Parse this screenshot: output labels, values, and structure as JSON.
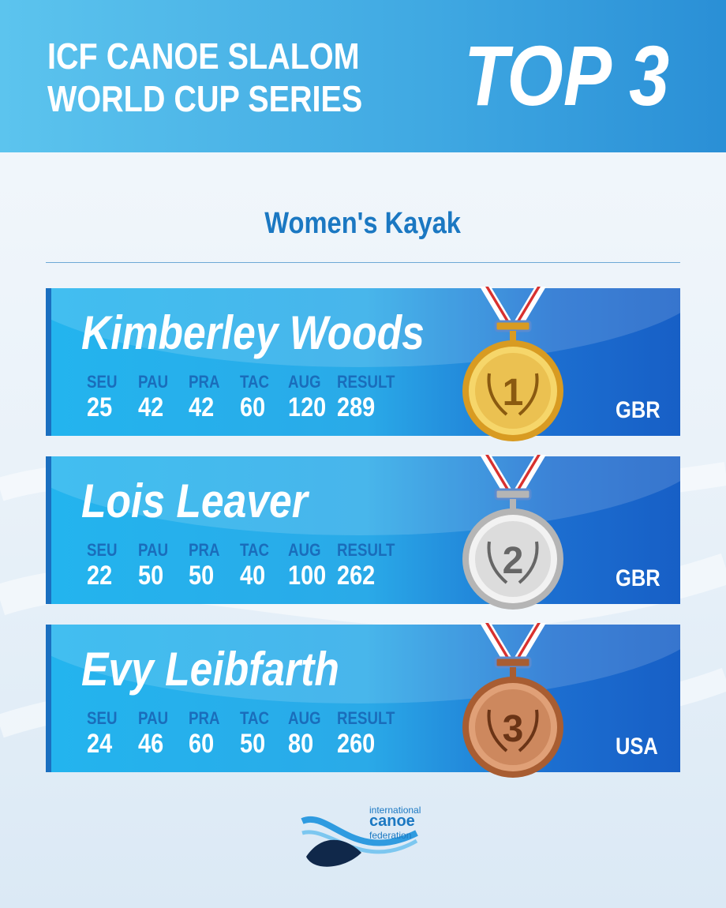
{
  "header": {
    "title_line1": "ICF CANOE SLALOM",
    "title_line2": "WORLD CUP SERIES",
    "badge": "TOP 3"
  },
  "category": "Women's Kayak",
  "columns": [
    "SEU",
    "PAU",
    "PRA",
    "TAC",
    "AUG",
    "RESULT"
  ],
  "athletes": [
    {
      "rank": "1",
      "name": "Kimberley Woods",
      "scores": [
        "25",
        "42",
        "42",
        "60",
        "120",
        "289"
      ],
      "country": "GBR",
      "medal": "gold"
    },
    {
      "rank": "2",
      "name": "Lois Leaver",
      "scores": [
        "22",
        "50",
        "50",
        "40",
        "100",
        "262"
      ],
      "country": "GBR",
      "medal": "silver"
    },
    {
      "rank": "3",
      "name": "Evy Leibfarth",
      "scores": [
        "24",
        "46",
        "60",
        "50",
        "80",
        "260"
      ],
      "country": "USA",
      "medal": "bronze"
    }
  ],
  "logo": {
    "line1": "international",
    "line2": "canoe",
    "line3": "federation"
  },
  "colors": {
    "gold": "#e7b73a",
    "silver": "#d2d2d2",
    "bronze": "#c07a4e",
    "accent": "#1b78c2"
  }
}
